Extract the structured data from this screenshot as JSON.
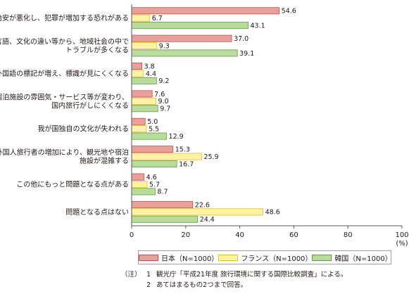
{
  "chart_data": {
    "type": "bar",
    "orientation": "horizontal",
    "categories": [
      [
        "治安が悪化し、犯罪が増加する恐れがある"
      ],
      [
        "言語、文化の違い等から、地域社会の中で",
        "トラブルが多くなる"
      ],
      [
        "外国語の標記が増え、標識が見にくくなる"
      ],
      [
        "宿泊施設の雰囲気・サービス等が変わり、",
        "国内旅行がしにくくなる"
      ],
      [
        "我が国独自の文化が失われる"
      ],
      [
        "外国人旅行者の増加により、観光地や宿泊",
        "施設が混雑する"
      ],
      [
        "この他にもっと問題となる点がある"
      ],
      [
        "問題となる点はない"
      ]
    ],
    "series": [
      {
        "name": "日本（N=1000）",
        "color": "#e8a19a",
        "stroke": "#c0504d",
        "values": [
          54.6,
          37.0,
          3.8,
          7.6,
          5.0,
          15.3,
          4.6,
          22.6
        ]
      },
      {
        "name": "フランス（N=1000）",
        "color": "#fff2a8",
        "stroke": "#e2c227",
        "values": [
          6.7,
          9.3,
          4.4,
          9.0,
          5.5,
          25.9,
          5.7,
          48.6
        ]
      },
      {
        "name": "韓国（N=1000）",
        "color": "#b9dc9c",
        "stroke": "#5f9e44",
        "values": [
          43.1,
          39.1,
          9.2,
          9.7,
          12.9,
          16.7,
          8.7,
          24.4
        ]
      }
    ],
    "value_labels": [
      [
        "54.6",
        "37.0",
        "3.8",
        "7.6",
        "5.0",
        "15.3",
        "4.6",
        "22.6"
      ],
      [
        "6.7",
        "9.3",
        "4.4",
        "9.0",
        "5.5",
        "25.9",
        "5.7",
        "48.6"
      ],
      [
        "43.1",
        "39.1",
        "9.2",
        "9.7",
        "12.9",
        "16.7",
        "8.7",
        "24.4"
      ]
    ],
    "xlim": [
      0,
      100
    ],
    "xticks": [
      0,
      20,
      40,
      60,
      80,
      100
    ],
    "xtick_labels": [
      "0",
      "20",
      "40",
      "60",
      "80",
      "100"
    ],
    "unit_label": "(%)",
    "legend_position": "bottom",
    "grid": false
  },
  "legend": {
    "japan": "日本（N=1000）",
    "france": "フランス（N=1000）",
    "korea": "韓国（N=1000）"
  },
  "notes": {
    "head": "（注）",
    "items": [
      {
        "num": "1",
        "text": "観光庁「平成21年度 旅行環境に関する国際比較調査」による。"
      },
      {
        "num": "2",
        "text": "あてはまるもの2つまで回答。"
      }
    ]
  }
}
